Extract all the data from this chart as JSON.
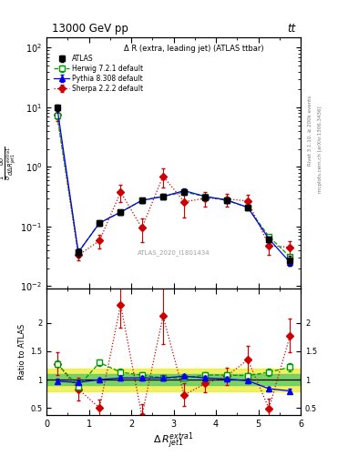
{
  "title_top": "13000 GeV pp",
  "title_top_right": "tt",
  "plot_title": "Δ R (extra, leading jet) (ATLAS ttbar)",
  "watermark": "ATLAS_2020_I1801434",
  "xlabel": "Δ R_{jet1}^{extra1}",
  "ylabel_ratio": "Ratio to ATLAS",
  "right_label1": "Rivet 3.1.10, ≥ 200k events",
  "right_label2": "mcplots.cern.ch [arXiv:1306.3436]",
  "atlas_x": [
    0.25,
    0.75,
    1.25,
    1.75,
    2.25,
    2.75,
    3.25,
    3.75,
    4.25,
    4.75,
    5.25,
    5.75
  ],
  "atlas_y": [
    10.0,
    0.037,
    0.115,
    0.175,
    0.275,
    0.32,
    0.38,
    0.31,
    0.275,
    0.21,
    0.062,
    0.027
  ],
  "atlas_yerr_lo": [
    1.2,
    0.006,
    0.012,
    0.016,
    0.022,
    0.028,
    0.035,
    0.028,
    0.022,
    0.018,
    0.007,
    0.005
  ],
  "atlas_yerr_hi": [
    1.2,
    0.006,
    0.012,
    0.016,
    0.022,
    0.028,
    0.035,
    0.028,
    0.022,
    0.018,
    0.007,
    0.005
  ],
  "herwig_x": [
    0.25,
    0.75,
    1.25,
    1.75,
    2.25,
    2.75,
    3.25,
    3.75,
    4.25,
    4.75,
    5.25,
    5.75
  ],
  "herwig_y": [
    7.2,
    0.037,
    0.115,
    0.175,
    0.275,
    0.32,
    0.38,
    0.32,
    0.275,
    0.21,
    0.068,
    0.031
  ],
  "herwig_yerr": [
    0.8,
    0.004,
    0.009,
    0.013,
    0.019,
    0.024,
    0.032,
    0.024,
    0.019,
    0.015,
    0.005,
    0.003
  ],
  "pythia_x": [
    0.25,
    0.75,
    1.25,
    1.75,
    2.25,
    2.75,
    3.25,
    3.75,
    4.25,
    4.75,
    5.25,
    5.75
  ],
  "pythia_y": [
    10.0,
    0.037,
    0.115,
    0.175,
    0.275,
    0.32,
    0.4,
    0.32,
    0.28,
    0.21,
    0.062,
    0.025
  ],
  "pythia_yerr": [
    0.8,
    0.004,
    0.009,
    0.013,
    0.019,
    0.024,
    0.032,
    0.024,
    0.019,
    0.015,
    0.005,
    0.003
  ],
  "sherpa_x": [
    0.25,
    0.75,
    1.25,
    1.75,
    2.25,
    2.75,
    3.25,
    3.75,
    4.25,
    4.75,
    5.25,
    5.75
  ],
  "sherpa_y": [
    7.5,
    0.033,
    0.058,
    0.38,
    0.095,
    0.7,
    0.26,
    0.3,
    0.29,
    0.27,
    0.048,
    0.045
  ],
  "sherpa_yerr_lo": [
    1.5,
    0.006,
    0.015,
    0.12,
    0.04,
    0.25,
    0.12,
    0.08,
    0.07,
    0.07,
    0.015,
    0.012
  ],
  "sherpa_yerr_hi": [
    1.5,
    0.006,
    0.015,
    0.12,
    0.04,
    0.25,
    0.12,
    0.08,
    0.07,
    0.07,
    0.015,
    0.012
  ],
  "herwig_ratio": [
    1.28,
    0.88,
    1.3,
    1.13,
    1.08,
    1.03,
    1.03,
    1.08,
    1.08,
    1.07,
    1.13,
    1.22
  ],
  "herwig_ratio_err": [
    0.06,
    0.06,
    0.06,
    0.06,
    0.05,
    0.05,
    0.05,
    0.05,
    0.05,
    0.05,
    0.06,
    0.07
  ],
  "pythia_ratio": [
    0.97,
    0.95,
    1.0,
    1.03,
    1.03,
    1.03,
    1.06,
    1.03,
    1.01,
    0.98,
    0.84,
    0.8
  ],
  "pythia_ratio_err": [
    0.04,
    0.04,
    0.04,
    0.04,
    0.04,
    0.04,
    0.04,
    0.04,
    0.04,
    0.04,
    0.04,
    0.04
  ],
  "sherpa_ratio": [
    1.28,
    0.83,
    0.5,
    2.32,
    0.36,
    2.12,
    0.73,
    0.93,
    1.06,
    1.35,
    0.49,
    1.78
  ],
  "sherpa_ratio_err": [
    0.2,
    0.2,
    0.15,
    0.4,
    0.2,
    0.5,
    0.2,
    0.15,
    0.15,
    0.25,
    0.18,
    0.3
  ],
  "green_band_lo": 0.9,
  "green_band_hi": 1.1,
  "yellow_band_lo": 0.8,
  "yellow_band_hi": 1.2,
  "color_atlas": "#000000",
  "color_herwig": "#009900",
  "color_pythia": "#0000ee",
  "color_sherpa": "#cc0000",
  "color_green_band": "#66cc66",
  "color_yellow_band": "#eeee44",
  "xlim": [
    0,
    6
  ],
  "ylim_main": [
    0.009,
    150
  ],
  "ylim_ratio": [
    0.38,
    2.6
  ]
}
